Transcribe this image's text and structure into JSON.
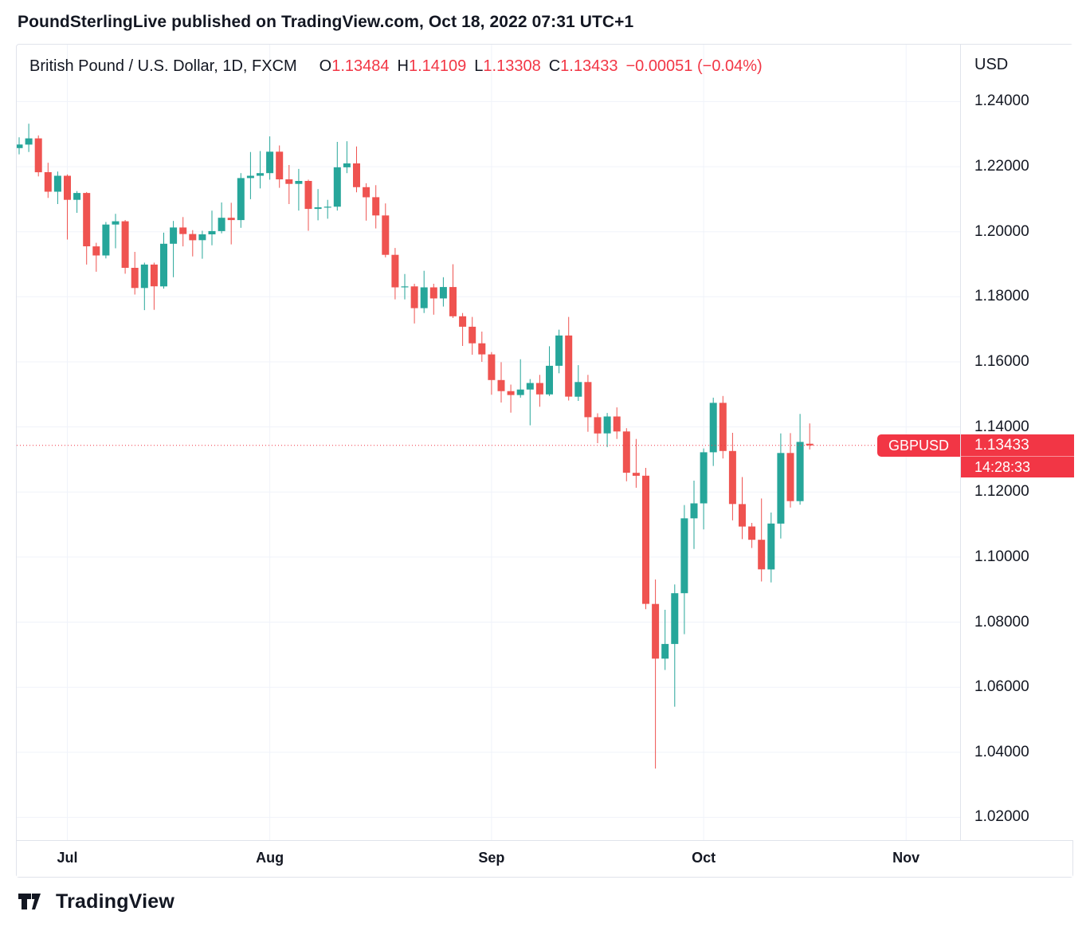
{
  "header": {
    "attribution": "PoundSterlingLive published on TradingView.com, Oct 18, 2022 07:31 UTC+1"
  },
  "chart": {
    "title": "British Pound / U.S. Dollar, 1D, FXCM",
    "ohlc": {
      "o_label": "O",
      "o": "1.13484",
      "h_label": "H",
      "h": "1.14109",
      "l_label": "L",
      "l": "1.13308",
      "c_label": "C",
      "c": "1.13433",
      "change": "−0.00051 (−0.04%)"
    },
    "axis_currency": "USD",
    "symbol_badge": "GBPUSD",
    "price_badge": "1.13433",
    "countdown": "14:28:33"
  },
  "footer": {
    "brand": "TradingView"
  },
  "colors": {
    "up": "#26a69a",
    "down": "#ef5350",
    "accent_red": "#f23645",
    "grid": "#f0f3fa",
    "text": "#131722"
  },
  "chart_data": {
    "type": "candlestick",
    "symbol": "GBPUSD",
    "timeframe": "1D",
    "exchange": "FXCM",
    "title": "British Pound / U.S. Dollar, 1D, FXCM",
    "last_price": 1.13433,
    "y_domain": [
      1.013,
      1.2575
    ],
    "price_gridlines": [
      1.02,
      1.04,
      1.06,
      1.08,
      1.1,
      1.12,
      1.14,
      1.16,
      1.18,
      1.2,
      1.22,
      1.24
    ],
    "slots": 98,
    "month_ticks": [
      {
        "label": "Jul",
        "index": 5
      },
      {
        "label": "Aug",
        "index": 26
      },
      {
        "label": "Sep",
        "index": 49
      },
      {
        "label": "Oct",
        "index": 71
      },
      {
        "label": "Nov",
        "index": 92
      }
    ],
    "candles": [
      [
        1.2257,
        1.229,
        1.2238,
        1.2268
      ],
      [
        1.2268,
        1.2332,
        1.2245,
        1.2287
      ],
      [
        1.2287,
        1.2296,
        1.217,
        1.2183
      ],
      [
        1.2183,
        1.2212,
        1.2104,
        1.2123
      ],
      [
        1.2123,
        1.2185,
        1.2085,
        1.2172
      ],
      [
        1.2172,
        1.2176,
        1.1976,
        1.2098
      ],
      [
        1.2098,
        1.2125,
        1.2058,
        1.2119
      ],
      [
        1.2119,
        1.2122,
        1.1899,
        1.1955
      ],
      [
        1.1955,
        1.1966,
        1.1877,
        1.1927
      ],
      [
        1.1927,
        1.203,
        1.1918,
        1.2022
      ],
      [
        1.2022,
        1.2055,
        1.1949,
        1.2032
      ],
      [
        1.2032,
        1.2036,
        1.1871,
        1.1889
      ],
      [
        1.1889,
        1.1938,
        1.1807,
        1.1827
      ],
      [
        1.1827,
        1.1905,
        1.1759,
        1.1899
      ],
      [
        1.1899,
        1.1905,
        1.176,
        1.1832
      ],
      [
        1.1832,
        1.1997,
        1.1825,
        1.1963
      ],
      [
        1.1963,
        1.2033,
        1.186,
        1.2013
      ],
      [
        1.2013,
        1.2045,
        1.1955,
        1.1993
      ],
      [
        1.1993,
        1.2005,
        1.1924,
        1.1974
      ],
      [
        1.1974,
        1.2003,
        1.1917,
        1.1992
      ],
      [
        1.1992,
        1.2065,
        1.1958,
        1.2002
      ],
      [
        1.2002,
        1.209,
        1.1995,
        1.2043
      ],
      [
        1.2043,
        1.2089,
        1.1961,
        1.2036
      ],
      [
        1.2036,
        1.218,
        1.2012,
        1.2165
      ],
      [
        1.2165,
        1.2245,
        1.21,
        1.2172
      ],
      [
        1.2172,
        1.2248,
        1.2133,
        1.218
      ],
      [
        1.218,
        1.2293,
        1.216,
        1.2246
      ],
      [
        1.2246,
        1.2265,
        1.2135,
        1.2161
      ],
      [
        1.2161,
        1.2205,
        1.2085,
        1.2147
      ],
      [
        1.2147,
        1.2193,
        1.2065,
        1.2156
      ],
      [
        1.2156,
        1.216,
        1.2003,
        1.207
      ],
      [
        1.207,
        1.2131,
        1.2035,
        1.2075
      ],
      [
        1.2075,
        1.2098,
        1.204,
        1.2077
      ],
      [
        1.2077,
        1.2276,
        1.2065,
        1.2198
      ],
      [
        1.2198,
        1.2278,
        1.218,
        1.221
      ],
      [
        1.221,
        1.2262,
        1.2121,
        1.2137
      ],
      [
        1.2137,
        1.2149,
        1.2034,
        1.2106
      ],
      [
        1.2106,
        1.2143,
        1.201,
        1.205
      ],
      [
        1.205,
        1.2087,
        1.1921,
        1.1929
      ],
      [
        1.1929,
        1.195,
        1.1792,
        1.1829
      ],
      [
        1.1829,
        1.187,
        1.1792,
        1.1832
      ],
      [
        1.1832,
        1.184,
        1.1718,
        1.1765
      ],
      [
        1.1765,
        1.188,
        1.175,
        1.1829
      ],
      [
        1.1829,
        1.184,
        1.1745,
        1.1795
      ],
      [
        1.1795,
        1.186,
        1.177,
        1.183
      ],
      [
        1.183,
        1.19,
        1.1735,
        1.174
      ],
      [
        1.174,
        1.175,
        1.1649,
        1.1708
      ],
      [
        1.1708,
        1.1738,
        1.1622,
        1.1657
      ],
      [
        1.1657,
        1.1693,
        1.16,
        1.1623
      ],
      [
        1.1623,
        1.163,
        1.1499,
        1.1544
      ],
      [
        1.1544,
        1.1599,
        1.1475,
        1.151
      ],
      [
        1.151,
        1.153,
        1.1444,
        1.1498
      ],
      [
        1.1498,
        1.1608,
        1.149,
        1.1515
      ],
      [
        1.1515,
        1.1547,
        1.1405,
        1.1535
      ],
      [
        1.1535,
        1.156,
        1.1462,
        1.15
      ],
      [
        1.15,
        1.1648,
        1.1495,
        1.1588
      ],
      [
        1.1588,
        1.1699,
        1.1565,
        1.1681
      ],
      [
        1.1681,
        1.1738,
        1.1481,
        1.1493
      ],
      [
        1.1493,
        1.159,
        1.148,
        1.1538
      ],
      [
        1.1538,
        1.156,
        1.1385,
        1.143
      ],
      [
        1.143,
        1.1442,
        1.135,
        1.138
      ],
      [
        1.138,
        1.1443,
        1.1338,
        1.1432
      ],
      [
        1.1432,
        1.146,
        1.1363,
        1.1386
      ],
      [
        1.1386,
        1.1396,
        1.1233,
        1.1259
      ],
      [
        1.1259,
        1.1363,
        1.1213,
        1.125
      ],
      [
        1.125,
        1.1274,
        1.084,
        1.0856
      ],
      [
        1.0856,
        1.0931,
        1.035,
        1.0688
      ],
      [
        1.0688,
        1.0838,
        1.0653,
        1.0733
      ],
      [
        1.0733,
        1.0916,
        1.054,
        1.0889
      ],
      [
        1.0889,
        1.116,
        1.0763,
        1.1119
      ],
      [
        1.1119,
        1.1235,
        1.1025,
        1.1165
      ],
      [
        1.1165,
        1.1334,
        1.1085,
        1.1322
      ],
      [
        1.1322,
        1.149,
        1.128,
        1.1474
      ],
      [
        1.1474,
        1.1495,
        1.1303,
        1.1326
      ],
      [
        1.1326,
        1.1382,
        1.1113,
        1.1163
      ],
      [
        1.1163,
        1.1246,
        1.1055,
        1.1094
      ],
      [
        1.1094,
        1.1105,
        1.1028,
        1.1053
      ],
      [
        1.1053,
        1.118,
        1.0925,
        1.0962
      ],
      [
        1.0962,
        1.1137,
        1.0922,
        1.1103
      ],
      [
        1.1103,
        1.138,
        1.1057,
        1.132
      ],
      [
        1.132,
        1.1381,
        1.1152,
        1.1172
      ],
      [
        1.1172,
        1.144,
        1.1161,
        1.1354
      ],
      [
        1.13484,
        1.14109,
        1.13308,
        1.13433
      ]
    ]
  }
}
